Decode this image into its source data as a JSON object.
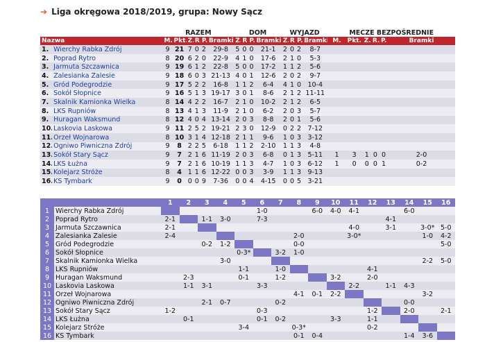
{
  "title": "Liga okręgowa 2018/2019, grupa: Nowy Sącz",
  "group_headers": {
    "razem": "RAZEM",
    "dom": "DOM",
    "wyjazd": "WYJAZD",
    "mecze": "MECZE BEZPOŚREDNIE"
  },
  "columns": {
    "name": "Nazwa",
    "m": "M.",
    "pkt": "Pkt.",
    "z": "Z.",
    "r": "R.",
    "p": "P.",
    "bramki": "Bramki",
    "dz": "Z.",
    "dr": "R.",
    "dp": "P.",
    "dbramki": "Bramki",
    "wz": "Z.",
    "wr": "R.",
    "wp": "P.",
    "wbramki": "Bramki",
    "mm": "M.",
    "mpkt": "Pkt.",
    "mz": "Z.",
    "mr": "R.",
    "mp": "P.",
    "mbramki": "Bramki"
  },
  "standings": [
    {
      "pos": "1.",
      "team": "Wierchy Rabka Zdrój",
      "m": "9",
      "pkt": "21",
      "z": "7",
      "r": "0",
      "p": "2",
      "bramki": "29-8",
      "dz": "5",
      "dr": "0",
      "dp": "0",
      "dbramki": "21-1",
      "wz": "2",
      "wr": "0",
      "wp": "2",
      "wbramki": "8-7",
      "mm": "",
      "mpkt": "",
      "mz": "",
      "mr": "",
      "mp": "",
      "mbramki": ""
    },
    {
      "pos": "2.",
      "team": "Poprad Rytro",
      "m": "8",
      "pkt": "20",
      "z": "6",
      "r": "2",
      "p": "0",
      "bramki": "22-9",
      "dz": "4",
      "dr": "1",
      "dp": "0",
      "dbramki": "17-6",
      "wz": "2",
      "wr": "1",
      "wp": "0",
      "wbramki": "5-3",
      "mm": "",
      "mpkt": "",
      "mz": "",
      "mr": "",
      "mp": "",
      "mbramki": ""
    },
    {
      "pos": "3.",
      "team": "Jarmuta Szczawnica",
      "m": "9",
      "pkt": "19",
      "z": "6",
      "r": "1",
      "p": "2",
      "bramki": "22-8",
      "dz": "5",
      "dr": "0",
      "dp": "0",
      "dbramki": "17-2",
      "wz": "1",
      "wr": "1",
      "wp": "2",
      "wbramki": "5-6",
      "mm": "",
      "mpkt": "",
      "mz": "",
      "mr": "",
      "mp": "",
      "mbramki": ""
    },
    {
      "pos": "4.",
      "team": "Zalesianka Zalesie",
      "m": "9",
      "pkt": "18",
      "z": "6",
      "r": "0",
      "p": "3",
      "bramki": "21-13",
      "dz": "4",
      "dr": "0",
      "dp": "1",
      "dbramki": "12-6",
      "wz": "2",
      "wr": "0",
      "wp": "2",
      "wbramki": "9-7",
      "mm": "",
      "mpkt": "",
      "mz": "",
      "mr": "",
      "mp": "",
      "mbramki": ""
    },
    {
      "pos": "5.",
      "team": "Gród Podegrodzie",
      "m": "9",
      "pkt": "17",
      "z": "5",
      "r": "2",
      "p": "2",
      "bramki": "16-8",
      "dz": "1",
      "dr": "1",
      "dp": "2",
      "dbramki": "6-4",
      "wz": "4",
      "wr": "1",
      "wp": "0",
      "wbramki": "10-4",
      "mm": "",
      "mpkt": "",
      "mz": "",
      "mr": "",
      "mp": "",
      "mbramki": ""
    },
    {
      "pos": "6.",
      "team": "Sokół Słopnice",
      "m": "9",
      "pkt": "16",
      "z": "5",
      "r": "1",
      "p": "3",
      "bramki": "19-17",
      "dz": "3",
      "dr": "0",
      "dp": "1",
      "dbramki": "8-6",
      "wz": "2",
      "wr": "1",
      "wp": "2",
      "wbramki": "11-11",
      "mm": "",
      "mpkt": "",
      "mz": "",
      "mr": "",
      "mp": "",
      "mbramki": ""
    },
    {
      "pos": "7.",
      "team": "Skalnik Kamionka Wielka",
      "m": "8",
      "pkt": "14",
      "z": "4",
      "r": "2",
      "p": "2",
      "bramki": "16-7",
      "dz": "2",
      "dr": "1",
      "dp": "0",
      "dbramki": "10-2",
      "wz": "2",
      "wr": "1",
      "wp": "2",
      "wbramki": "6-5",
      "mm": "",
      "mpkt": "",
      "mz": "",
      "mr": "",
      "mp": "",
      "mbramki": ""
    },
    {
      "pos": "8.",
      "team": "LKS Rupniów",
      "m": "8",
      "pkt": "13",
      "z": "4",
      "r": "1",
      "p": "3",
      "bramki": "11-9",
      "dz": "2",
      "dr": "1",
      "dp": "0",
      "dbramki": "6-2",
      "wz": "2",
      "wr": "0",
      "wp": "3",
      "wbramki": "5-7",
      "mm": "",
      "mpkt": "",
      "mz": "",
      "mr": "",
      "mp": "",
      "mbramki": ""
    },
    {
      "pos": "9.",
      "team": "Huragan Waksmund",
      "m": "8",
      "pkt": "12",
      "z": "4",
      "r": "0",
      "p": "4",
      "bramki": "13-14",
      "dz": "2",
      "dr": "0",
      "dp": "3",
      "dbramki": "8-8",
      "wz": "2",
      "wr": "0",
      "wp": "1",
      "wbramki": "5-6",
      "mm": "",
      "mpkt": "",
      "mz": "",
      "mr": "",
      "mp": "",
      "mbramki": ""
    },
    {
      "pos": "10.",
      "team": "Laskovia Laskowa",
      "m": "9",
      "pkt": "11",
      "z": "2",
      "r": "5",
      "p": "2",
      "bramki": "19-21",
      "dz": "2",
      "dr": "3",
      "dp": "0",
      "dbramki": "12-9",
      "wz": "0",
      "wr": "2",
      "wp": "2",
      "wbramki": "7-12",
      "mm": "",
      "mpkt": "",
      "mz": "",
      "mr": "",
      "mp": "",
      "mbramki": ""
    },
    {
      "pos": "11.",
      "team": "Orzeł Wojnarowa",
      "m": "8",
      "pkt": "10",
      "z": "3",
      "r": "1",
      "p": "4",
      "bramki": "12-18",
      "dz": "2",
      "dr": "1",
      "dp": "1",
      "dbramki": "9-6",
      "wz": "1",
      "wr": "0",
      "wp": "3",
      "wbramki": "3-12",
      "mm": "",
      "mpkt": "",
      "mz": "",
      "mr": "",
      "mp": "",
      "mbramki": ""
    },
    {
      "pos": "12.",
      "team": "Ogniwo Piwniczna Zdrój",
      "m": "9",
      "pkt": "8",
      "z": "2",
      "r": "2",
      "p": "5",
      "bramki": "6-18",
      "dz": "1",
      "dr": "1",
      "dp": "2",
      "dbramki": "2-10",
      "wz": "1",
      "wr": "1",
      "wp": "3",
      "wbramki": "4-8",
      "mm": "",
      "mpkt": "",
      "mz": "",
      "mr": "",
      "mp": "",
      "mbramki": ""
    },
    {
      "pos": "13.",
      "team": "Sokół Stary Sącz",
      "m": "9",
      "pkt": "7",
      "z": "2",
      "r": "1",
      "p": "6",
      "bramki": "11-19",
      "dz": "2",
      "dr": "0",
      "dp": "3",
      "dbramki": "6-8",
      "wz": "0",
      "wr": "1",
      "wp": "3",
      "wbramki": "5-11",
      "mm": "1",
      "mpkt": "3",
      "mz": "1",
      "mr": "0",
      "mp": "0",
      "mbramki": "2-0"
    },
    {
      "pos": "14.",
      "team": "LKS Łużna",
      "m": "9",
      "pkt": "7",
      "z": "2",
      "r": "1",
      "p": "6",
      "bramki": "10-19",
      "dz": "1",
      "dr": "1",
      "dp": "3",
      "dbramki": "4-7",
      "wz": "1",
      "wr": "0",
      "wp": "3",
      "wbramki": "6-12",
      "mm": "1",
      "mpkt": "0",
      "mz": "0",
      "mr": "0",
      "mp": "1",
      "mbramki": "0-2"
    },
    {
      "pos": "15.",
      "team": "Kolejarz Stróże",
      "m": "8",
      "pkt": "4",
      "z": "1",
      "r": "1",
      "p": "6",
      "bramki": "12-22",
      "dz": "0",
      "dr": "0",
      "dp": "3",
      "dbramki": "3-9",
      "wz": "1",
      "wr": "1",
      "wp": "3",
      "wbramki": "9-13",
      "mm": "",
      "mpkt": "",
      "mz": "",
      "mr": "",
      "mp": "",
      "mbramki": ""
    },
    {
      "pos": "16.",
      "team": "KS Tymbark",
      "m": "9",
      "pkt": "0",
      "z": "0",
      "r": "0",
      "p": "9",
      "bramki": "7-36",
      "dz": "0",
      "dr": "0",
      "dp": "4",
      "dbramki": "4-15",
      "wz": "0",
      "wr": "0",
      "wp": "5",
      "wbramki": "3-21",
      "mm": "",
      "mpkt": "",
      "mz": "",
      "mr": "",
      "mp": "",
      "mbramki": ""
    }
  ],
  "matrix": {
    "col_headers": [
      "1",
      "2",
      "3",
      "4",
      "5",
      "6",
      "7",
      "8",
      "9",
      "10",
      "11",
      "12",
      "13",
      "14",
      "15",
      "16"
    ],
    "rows": [
      {
        "num": "1",
        "name": "Wierchy Rabka Zdrój",
        "cells": [
          "",
          "",
          "",
          "",
          "",
          "1-0",
          "",
          "",
          "6-0",
          "4-0",
          "4-1",
          "",
          "",
          "6-0",
          "",
          ""
        ]
      },
      {
        "num": "2",
        "name": "Poprad Rytro",
        "cells": [
          "2-1",
          "",
          "1-1",
          "3-0",
          "",
          "7-3",
          "",
          "",
          "",
          "",
          "",
          "",
          "4-1",
          "",
          "",
          ""
        ]
      },
      {
        "num": "3",
        "name": "Jarmuta Szczawnica",
        "cells": [
          "2-1",
          "",
          "",
          "",
          "",
          "",
          "",
          "",
          "",
          "",
          "4-0",
          "",
          "3-1",
          "",
          "3-0*",
          "5-0"
        ]
      },
      {
        "num": "4",
        "name": "Zalesianka Zalesie",
        "cells": [
          "2-4",
          "",
          "",
          "",
          "",
          "",
          "",
          "2-0",
          "",
          "",
          "3-0*",
          "",
          "",
          "",
          "1-0",
          "4-2"
        ]
      },
      {
        "num": "5",
        "name": "Gród Podegrodzie",
        "cells": [
          "",
          "",
          "0-2",
          "1-2",
          "",
          "",
          "",
          "0-0",
          "",
          "",
          "",
          "",
          "",
          "",
          "",
          "5-0"
        ]
      },
      {
        "num": "6",
        "name": "Sokół Słopnice",
        "cells": [
          "",
          "",
          "",
          "",
          "0-3*",
          "",
          "3-2",
          "1-0",
          "",
          "",
          "",
          "",
          "",
          "",
          "",
          ""
        ]
      },
      {
        "num": "7",
        "name": "Skalnik Kamionka Wielka",
        "cells": [
          "",
          "",
          "",
          "3-0",
          "",
          "",
          "",
          "",
          "",
          "",
          "",
          "",
          "",
          "",
          "2-2",
          "5-0"
        ]
      },
      {
        "num": "8",
        "name": "LKS Rupniów",
        "cells": [
          "",
          "",
          "",
          "",
          "1-1",
          "",
          "1-0",
          "",
          "",
          "",
          "",
          "4-1",
          "",
          "",
          "",
          ""
        ]
      },
      {
        "num": "9",
        "name": "Huragan Waksmund",
        "cells": [
          "",
          "2-3",
          "",
          "",
          "0-1",
          "",
          "1-2",
          "",
          "",
          "3-2",
          "",
          "2-0",
          "",
          "",
          "",
          ""
        ]
      },
      {
        "num": "10",
        "name": "Laskovia Laskowa",
        "cells": [
          "",
          "1-1",
          "3-1",
          "",
          "",
          "3-3",
          "",
          "",
          "",
          "",
          "2-2",
          "",
          "1-1",
          "4-3",
          "",
          ""
        ]
      },
      {
        "num": "11",
        "name": "Orzeł Wojnarowa",
        "cells": [
          "",
          "",
          "",
          "",
          "",
          "",
          "",
          "4-1",
          "0-1",
          "2-2",
          "",
          "",
          "",
          "",
          "3-2",
          ""
        ]
      },
      {
        "num": "12",
        "name": "Ogniwo Piwniczna Zdrój",
        "cells": [
          "",
          "",
          "2-1",
          "0-7",
          "",
          "",
          "0-2",
          "",
          "",
          "",
          "",
          "",
          "",
          "0-0",
          "",
          ""
        ]
      },
      {
        "num": "13",
        "name": "Sokół Stary Sącz",
        "cells": [
          "1-2",
          "",
          "",
          "",
          "",
          "0-3",
          "",
          "",
          "",
          "",
          "",
          "1-2",
          "",
          "2-0",
          "",
          "2-1"
        ]
      },
      {
        "num": "14",
        "name": "LKS Łużna",
        "cells": [
          "",
          "0-1",
          "",
          "",
          "",
          "0-1",
          "0-2",
          "",
          "",
          "3-3",
          "",
          "1-1",
          "",
          "",
          "",
          ""
        ]
      },
      {
        "num": "15",
        "name": "Kolejarz Stróże",
        "cells": [
          "",
          "",
          "",
          "",
          "3-4",
          "",
          "",
          "0-3*",
          "",
          "",
          "",
          "0-2",
          "",
          "",
          "",
          ""
        ]
      },
      {
        "num": "16",
        "name": "KS Tymbark",
        "cells": [
          "",
          "",
          "",
          "",
          "",
          "",
          "",
          "0-1",
          "0-4",
          "",
          "",
          "",
          "",
          "1-4",
          "3-6",
          ""
        ]
      }
    ]
  },
  "colors": {
    "header_red": "#c0272d",
    "matrix_purple": "#7b77c4",
    "link_blue": "#1a3fa0",
    "arrow_orange": "#e65a1b"
  }
}
